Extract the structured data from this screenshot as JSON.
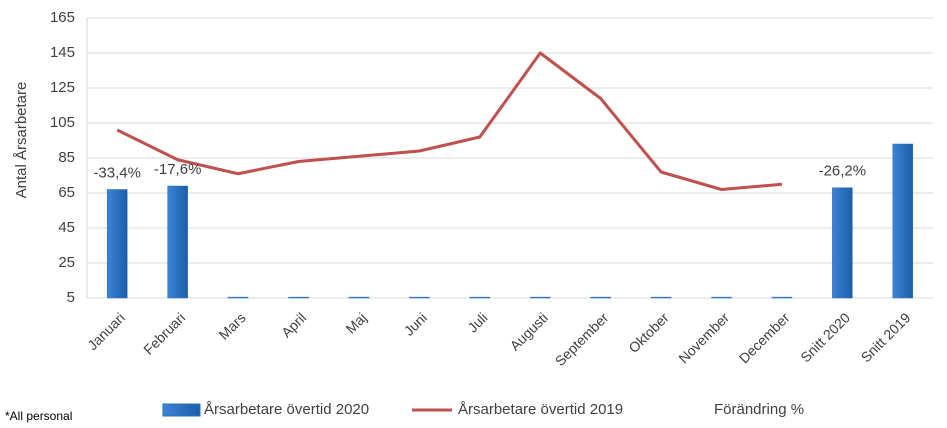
{
  "chart_data": {
    "type": "bar+line",
    "y_label": "Antal Årsarbetare",
    "categories": [
      "Januari",
      "Februari",
      "Mars",
      "April",
      "Maj",
      "Juni",
      "Juli",
      "Augusti",
      "September",
      "Oktober",
      "November",
      "December",
      "Snitt 2020",
      "Snitt 2019"
    ],
    "series": [
      {
        "name": "Årsarbetare övertid 2020",
        "type": "bar",
        "color": "#2a6fc0",
        "values": [
          67,
          69,
          5.5,
          5.5,
          5.5,
          5.5,
          5.5,
          5.5,
          5.5,
          5.5,
          5.5,
          5.5,
          68,
          93
        ]
      },
      {
        "name": "Årsarbetare övertid  2019",
        "type": "line",
        "color": "#c0504d",
        "values": [
          101,
          84,
          76,
          83,
          86,
          89,
          97,
          145,
          119,
          77,
          67,
          70,
          null,
          null
        ]
      },
      {
        "name": "Förändring %",
        "type": "label",
        "values": [
          -33.4,
          -17.6,
          null,
          null,
          null,
          null,
          null,
          null,
          null,
          null,
          null,
          null,
          -26.2,
          null
        ],
        "value_labels": [
          "-33,4%",
          "-17,6%",
          null,
          null,
          null,
          null,
          null,
          null,
          null,
          null,
          null,
          null,
          "-26,2%",
          null
        ]
      }
    ],
    "ylim": [
      5,
      165
    ],
    "yticks": [
      5,
      25,
      45,
      65,
      85,
      105,
      125,
      145,
      165
    ],
    "grid": true,
    "footnote": "*All personal"
  }
}
